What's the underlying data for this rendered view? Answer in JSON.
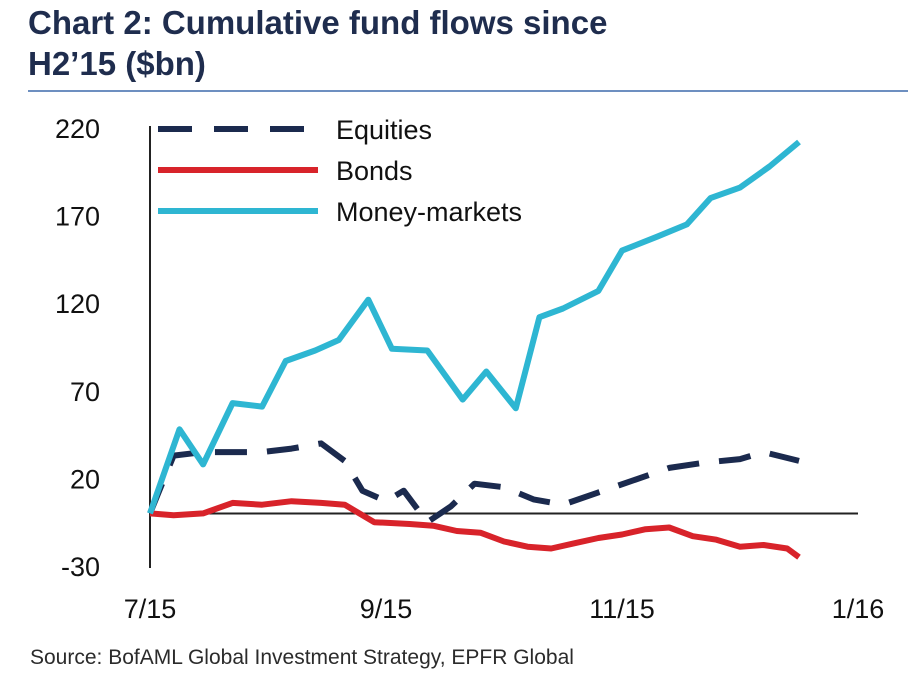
{
  "title_lines": [
    "Chart 2: Cumulative fund flows since",
    "H2’15 ($bn)"
  ],
  "source": "Source: BofAML Global Investment Strategy, EPFR Global",
  "chart_data": {
    "type": "line",
    "title": "Chart 2: Cumulative fund flows since H2’15 ($bn)",
    "xlabel": "",
    "ylabel": "",
    "ylim": [
      -30,
      220
    ],
    "xlim": [
      0,
      6
    ],
    "x_unit": "months since July 2015",
    "x_tick_values": [
      0,
      2,
      4,
      6
    ],
    "x_tick_labels": [
      "7/15",
      "9/15",
      "11/15",
      "1/16"
    ],
    "y_ticks": [
      -30,
      20,
      70,
      120,
      170,
      220
    ],
    "grid": false,
    "zero_line": true,
    "legend_position": "top-left",
    "series": [
      {
        "name": "Equities",
        "style": "dashed",
        "color": "#1b2a4e",
        "x": [
          0,
          0.2,
          0.45,
          0.7,
          0.95,
          1.2,
          1.45,
          1.65,
          1.8,
          2.0,
          2.15,
          2.35,
          2.55,
          2.75,
          3.0,
          3.25,
          3.5,
          3.8,
          4.1,
          4.4,
          4.7,
          5.0,
          5.2,
          5.5
        ],
        "values": [
          0,
          33,
          35,
          35,
          35,
          37,
          40,
          30,
          13,
          7,
          13,
          -5,
          4,
          17,
          15,
          8,
          5,
          12,
          19,
          26,
          29,
          31,
          35,
          30
        ]
      },
      {
        "name": "Bonds",
        "style": "solid",
        "color": "#d8232a",
        "x": [
          0,
          0.2,
          0.45,
          0.7,
          0.95,
          1.2,
          1.45,
          1.65,
          1.9,
          2.2,
          2.4,
          2.6,
          2.8,
          3.0,
          3.2,
          3.4,
          3.6,
          3.8,
          4.0,
          4.2,
          4.4,
          4.6,
          4.8,
          5.0,
          5.2,
          5.4,
          5.5
        ],
        "values": [
          0,
          -1,
          0,
          6,
          5,
          7,
          6,
          5,
          -5,
          -6,
          -7,
          -10,
          -11,
          -16,
          -19,
          -20,
          -17,
          -14,
          -12,
          -9,
          -8,
          -13,
          -15,
          -19,
          -18,
          -20,
          -25
        ]
      },
      {
        "name": "Money-markets",
        "style": "solid",
        "color": "#2eb6d2",
        "x": [
          0,
          0.25,
          0.45,
          0.7,
          0.95,
          1.15,
          1.4,
          1.6,
          1.85,
          2.05,
          2.35,
          2.65,
          2.85,
          3.1,
          3.3,
          3.5,
          3.8,
          4.0,
          4.3,
          4.55,
          4.75,
          5.0,
          5.25,
          5.5
        ],
        "values": [
          0,
          48,
          28,
          63,
          61,
          87,
          93,
          99,
          122,
          94,
          93,
          65,
          81,
          60,
          112,
          117,
          127,
          150,
          158,
          165,
          180,
          186,
          198,
          212
        ]
      }
    ]
  }
}
